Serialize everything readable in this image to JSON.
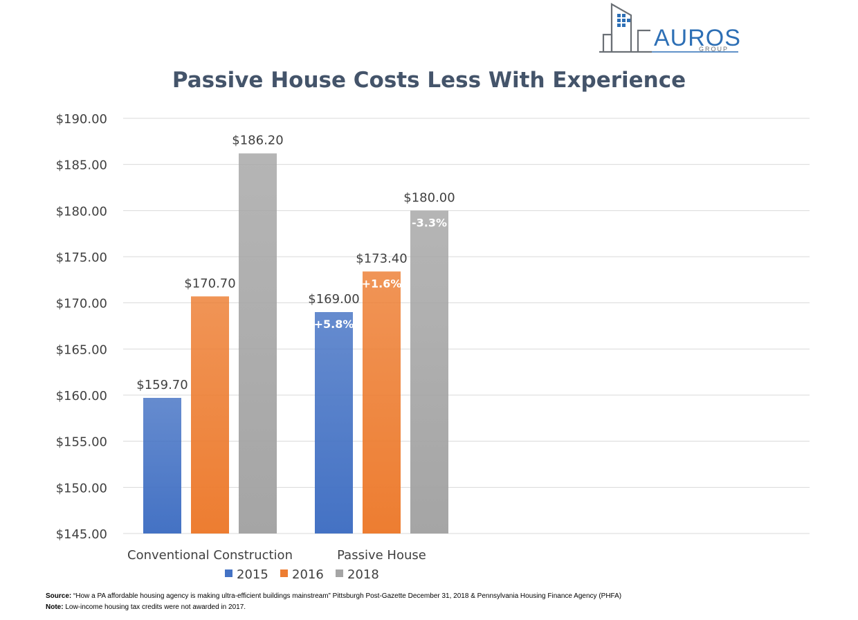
{
  "logo": {
    "name": "AUROS",
    "sub": "GROUP"
  },
  "colors": {
    "s2015": "#4472c4",
    "s2016": "#ed7d31",
    "s2018": "#a5a5a5",
    "grid": "#d9d9d9",
    "title": "#44546a"
  },
  "chart_data": {
    "type": "bar",
    "title": "Passive House Costs Less With Experience",
    "xlabel": "",
    "ylabel": "",
    "ylim": [
      145,
      190
    ],
    "yticks": [
      "$190.00",
      "$185.00",
      "$180.00",
      "$175.00",
      "$170.00",
      "$165.00",
      "$160.00",
      "$155.00",
      "$150.00",
      "$145.00"
    ],
    "ytick_values": [
      190,
      185,
      180,
      175,
      170,
      165,
      160,
      155,
      150,
      145
    ],
    "categories": [
      "Conventional Construction",
      "Passive House"
    ],
    "series": [
      {
        "name": "2015",
        "values": [
          159.7,
          169.0
        ],
        "labels": [
          "$159.70",
          "$169.00"
        ],
        "inner": [
          "",
          "+5.8%"
        ]
      },
      {
        "name": "2016",
        "values": [
          170.7,
          173.4
        ],
        "labels": [
          "$170.70",
          "$173.40"
        ],
        "inner": [
          "",
          "+1.6%"
        ]
      },
      {
        "name": "2018",
        "values": [
          186.2,
          180.0
        ],
        "labels": [
          "$186.20",
          "$180.00"
        ],
        "inner": [
          "",
          "-3.3%"
        ]
      }
    ],
    "grid": true,
    "legend": "bottom"
  },
  "footer": {
    "source_label": "Source:",
    "source_text": " “How a PA affordable housing agency is making ultra-efficient buildings mainstream” Pittsburgh Post-Gazette December 31, 2018 & Pennsylvania Housing Finance Agency (PHFA)",
    "note_label": "Note:",
    "note_text": "  Low-income housing tax credits were not awarded in 2017."
  }
}
